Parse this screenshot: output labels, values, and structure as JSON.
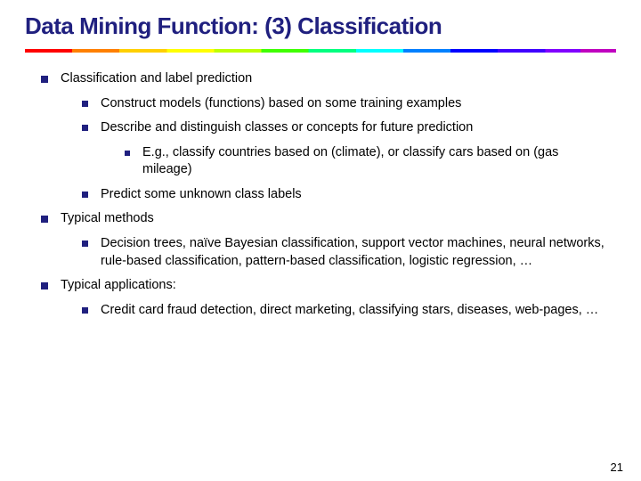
{
  "title": "Data Mining Function: (3) Classification",
  "b1": "Classification and label prediction",
  "b1a": "Construct models (functions) based on some training examples",
  "b1b": "Describe and distinguish classes or concepts for future prediction",
  "b1b1": "E.g., classify countries based on (climate), or classify cars based on (gas mileage)",
  "b1c": "Predict some unknown class labels",
  "b2": "Typical methods",
  "b2a": "Decision trees, naïve Bayesian classification, support vector machines, neural networks, rule-based classification, pattern-based classification, logistic regression, …",
  "b3": "Typical applications:",
  "b3a": "Credit card fraud detection, direct marketing, classifying stars, diseases,  web-pages, …",
  "pagenum": "21"
}
